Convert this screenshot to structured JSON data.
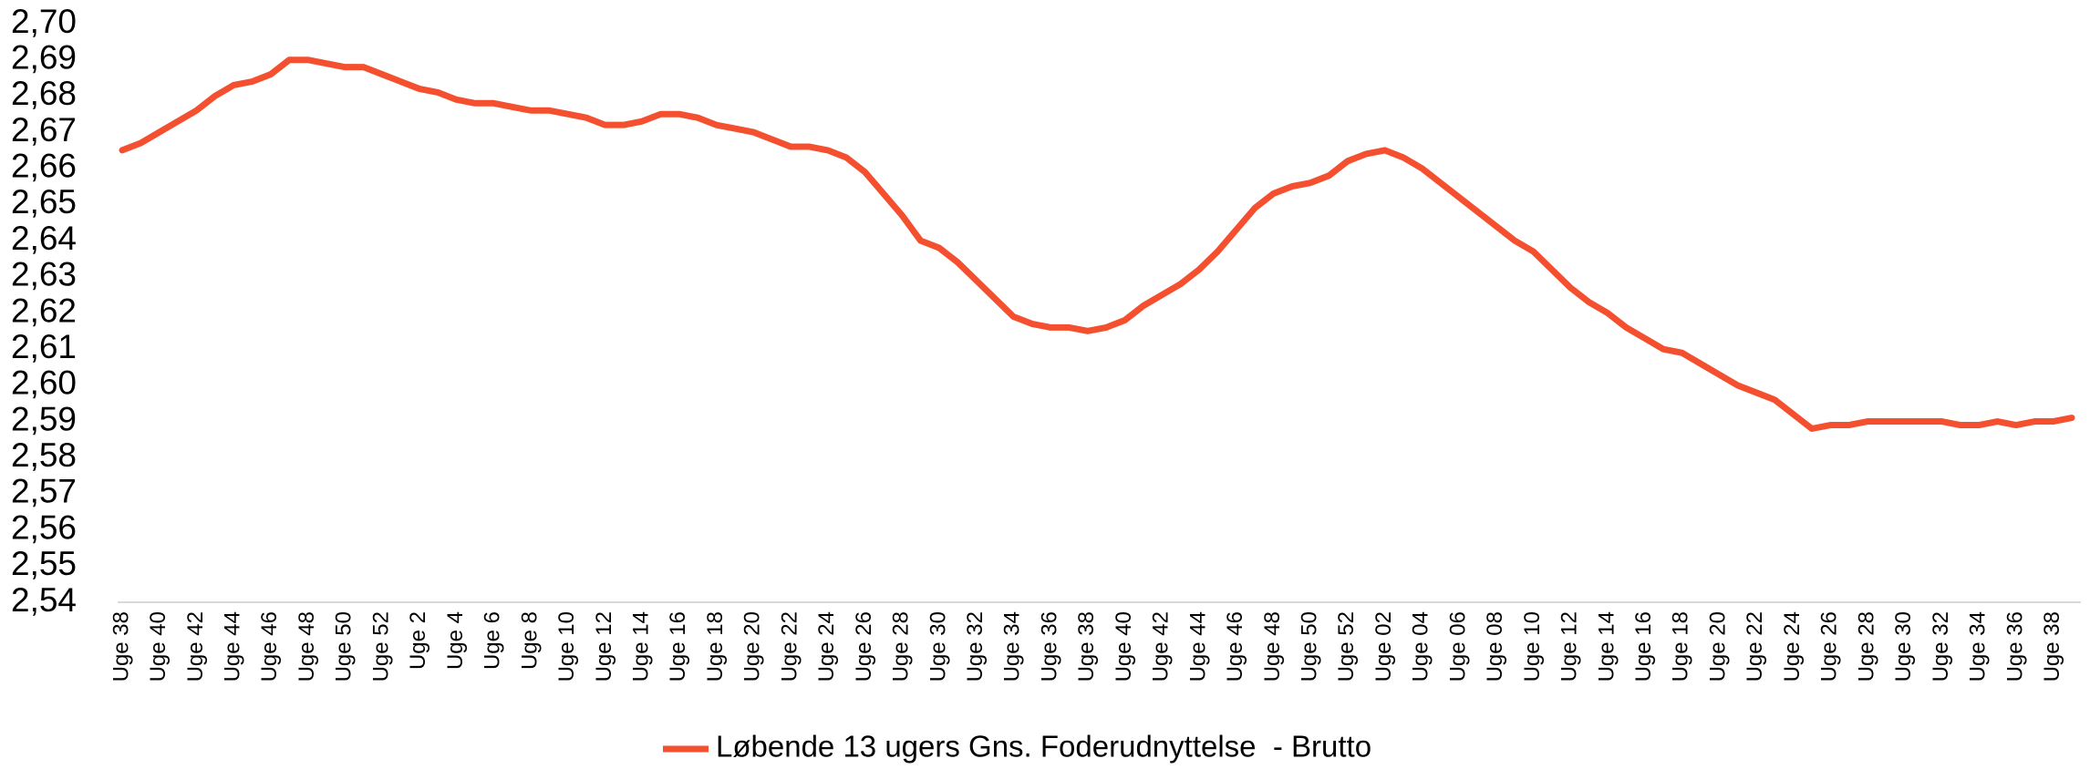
{
  "chart_data": {
    "type": "line",
    "categories": [
      "Uge 38",
      null,
      "Uge 40",
      null,
      "Uge 42",
      null,
      "Uge 44",
      null,
      "Uge 46",
      null,
      "Uge 48",
      null,
      "Uge 50",
      null,
      "Uge 52",
      null,
      "Uge 2",
      null,
      "Uge 4",
      null,
      "Uge 6",
      null,
      "Uge 8",
      null,
      "Uge 10",
      null,
      "Uge 12",
      null,
      "Uge 14",
      null,
      "Uge 16",
      null,
      "Uge 18",
      null,
      "Uge 20",
      null,
      "Uge 22",
      null,
      "Uge 24",
      null,
      "Uge 26",
      null,
      "Uge 28",
      null,
      "Uge 30",
      null,
      "Uge 32",
      null,
      "Uge 34",
      null,
      "Uge 36",
      null,
      "Uge 38",
      null,
      "Uge 40",
      null,
      "Uge 42",
      null,
      "Uge 44",
      null,
      "Uge 46",
      null,
      "Uge 48",
      null,
      "Uge 50",
      null,
      "Uge 52",
      null,
      "Uge 02",
      null,
      "Uge 04",
      null,
      "Uge 06",
      null,
      "Uge 08",
      null,
      "Uge 10",
      null,
      "Uge 12",
      null,
      "Uge 14",
      null,
      "Uge 16",
      null,
      "Uge 18",
      null,
      "Uge 20",
      null,
      "Uge 22",
      null,
      "Uge 24",
      null,
      "Uge 26",
      null,
      "Uge 28",
      null,
      "Uge 30",
      null,
      "Uge 32",
      null,
      "Uge 34",
      null,
      "Uge 36",
      null,
      "Uge 38",
      null
    ],
    "series": [
      {
        "name": "Løbende 13 ugers Gns. Foderudnyttelse  - Brutto",
        "color": "#f4502f",
        "values": [
          2.665,
          2.667,
          2.67,
          2.673,
          2.676,
          2.68,
          2.683,
          2.684,
          2.686,
          2.69,
          2.69,
          2.689,
          2.688,
          2.688,
          2.686,
          2.684,
          2.682,
          2.681,
          2.679,
          2.678,
          2.678,
          2.677,
          2.676,
          2.676,
          2.675,
          2.674,
          2.672,
          2.672,
          2.673,
          2.675,
          2.675,
          2.674,
          2.672,
          2.671,
          2.67,
          2.668,
          2.666,
          2.666,
          2.665,
          2.663,
          2.659,
          2.653,
          2.647,
          2.64,
          2.638,
          2.634,
          2.629,
          2.624,
          2.619,
          2.617,
          2.616,
          2.616,
          2.615,
          2.616,
          2.618,
          2.622,
          2.625,
          2.628,
          2.632,
          2.637,
          2.643,
          2.649,
          2.653,
          2.655,
          2.656,
          2.658,
          2.662,
          2.664,
          2.665,
          2.663,
          2.66,
          2.656,
          2.652,
          2.648,
          2.644,
          2.64,
          2.637,
          2.632,
          2.627,
          2.623,
          2.62,
          2.616,
          2.613,
          2.61,
          2.609,
          2.606,
          2.603,
          2.6,
          2.598,
          2.596,
          2.592,
          2.588,
          2.589,
          2.589,
          2.59,
          2.59,
          2.59,
          2.59,
          2.59,
          2.589,
          2.589,
          2.59,
          2.589,
          2.59,
          2.59,
          2.591
        ]
      }
    ],
    "ylim": [
      2.54,
      2.7
    ],
    "yticks": [
      {
        "value": 2.54,
        "label": "2,54"
      },
      {
        "value": 2.55,
        "label": "2,55"
      },
      {
        "value": 2.56,
        "label": "2,56"
      },
      {
        "value": 2.57,
        "label": "2,57"
      },
      {
        "value": 2.58,
        "label": "2,58"
      },
      {
        "value": 2.59,
        "label": "2,59"
      },
      {
        "value": 2.6,
        "label": "2,60"
      },
      {
        "value": 2.61,
        "label": "2,61"
      },
      {
        "value": 2.62,
        "label": "2,62"
      },
      {
        "value": 2.63,
        "label": "2,63"
      },
      {
        "value": 2.64,
        "label": "2,64"
      },
      {
        "value": 2.65,
        "label": "2,65"
      },
      {
        "value": 2.66,
        "label": "2,66"
      },
      {
        "value": 2.67,
        "label": "2,67"
      },
      {
        "value": 2.68,
        "label": "2,68"
      },
      {
        "value": 2.69,
        "label": "2,69"
      },
      {
        "value": 2.7,
        "label": "2,70"
      }
    ],
    "grid": false,
    "legend": "bottom"
  }
}
